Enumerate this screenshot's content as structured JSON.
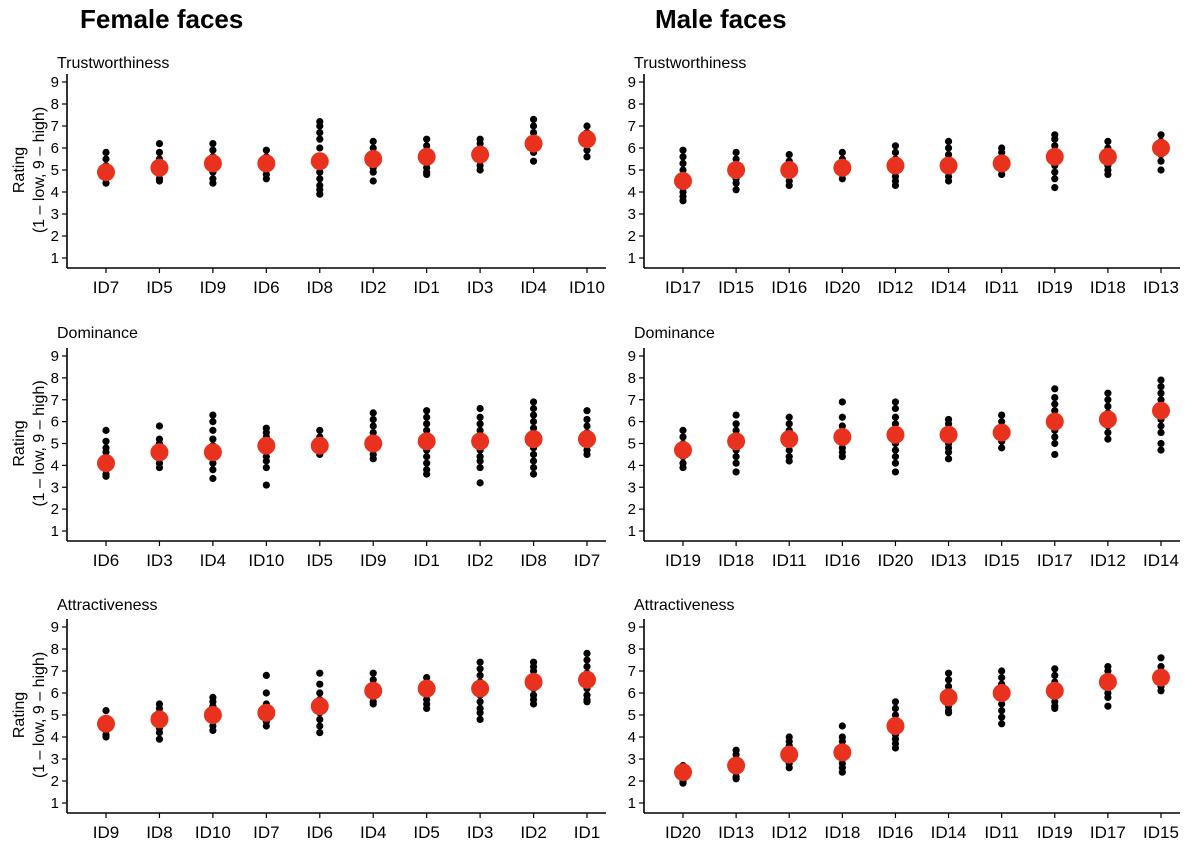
{
  "columns": {
    "female": "Female faces",
    "male": "Male faces"
  },
  "ylabel": "Rating",
  "ylabel_sub": "(1 – low, 9 – high)",
  "colors": {
    "mean": "#e8321e",
    "point": "#000000",
    "axis": "#000000"
  },
  "chart_data": [
    {
      "type": "scatter",
      "panel": "female-trustworthiness",
      "title": "Trustworthiness",
      "ylim": [
        1,
        9
      ],
      "categories": [
        "ID7",
        "ID5",
        "ID9",
        "ID6",
        "ID8",
        "ID2",
        "ID1",
        "ID3",
        "ID4",
        "ID10"
      ],
      "means": [
        4.9,
        5.1,
        5.3,
        5.3,
        5.4,
        5.5,
        5.6,
        5.7,
        6.2,
        6.4
      ],
      "points": [
        [
          5.8,
          5.5,
          5.2,
          5.0,
          4.8,
          4.6,
          4.4
        ],
        [
          6.2,
          5.8,
          5.5,
          5.2,
          5.0,
          4.8,
          4.6,
          4.5
        ],
        [
          6.2,
          5.9,
          5.6,
          5.3,
          5.1,
          4.9,
          4.6,
          4.4
        ],
        [
          5.9,
          5.6,
          5.4,
          5.2,
          5.0,
          4.8,
          4.6
        ],
        [
          7.2,
          7.0,
          6.7,
          6.4,
          6.0,
          5.6,
          5.2,
          4.9,
          4.6,
          4.3,
          4.1,
          3.9
        ],
        [
          6.3,
          6.0,
          5.6,
          5.3,
          5.1,
          4.9,
          4.5
        ],
        [
          6.4,
          6.1,
          5.9,
          5.6,
          5.3,
          5.1,
          4.9,
          4.8
        ],
        [
          6.4,
          6.2,
          5.9,
          5.6,
          5.4,
          5.2,
          5.0
        ],
        [
          7.3,
          7.0,
          6.7,
          6.4,
          6.2,
          6.0,
          5.8,
          5.4
        ],
        [
          7.0,
          6.7,
          6.5,
          6.2,
          5.9,
          5.6
        ]
      ]
    },
    {
      "type": "scatter",
      "panel": "female-dominance",
      "title": "Dominance",
      "ylim": [
        1,
        9
      ],
      "categories": [
        "ID6",
        "ID3",
        "ID4",
        "ID10",
        "ID5",
        "ID9",
        "ID1",
        "ID2",
        "ID8",
        "ID7"
      ],
      "means": [
        4.1,
        4.6,
        4.6,
        4.9,
        4.9,
        5.0,
        5.1,
        5.1,
        5.2,
        5.2
      ],
      "points": [
        [
          5.6,
          5.1,
          4.8,
          4.6,
          4.3,
          4.0,
          3.8,
          3.6,
          3.5
        ],
        [
          5.8,
          5.2,
          5.0,
          4.8,
          4.5,
          4.3,
          4.1,
          3.9
        ],
        [
          6.3,
          6.0,
          5.6,
          5.2,
          4.9,
          4.6,
          4.4,
          4.1,
          3.8,
          3.4
        ],
        [
          5.7,
          5.5,
          5.3,
          5.0,
          4.7,
          4.4,
          4.2,
          3.9,
          3.1
        ],
        [
          5.6,
          5.3,
          5.1,
          4.9,
          4.7,
          4.5
        ],
        [
          6.4,
          6.1,
          5.8,
          5.5,
          5.2,
          4.9,
          4.7,
          4.5,
          4.3
        ],
        [
          6.5,
          6.2,
          5.9,
          5.6,
          5.3,
          5.0,
          4.7,
          4.4,
          4.1,
          3.8,
          3.6
        ],
        [
          6.6,
          6.2,
          5.9,
          5.6,
          5.3,
          5.0,
          4.7,
          4.4,
          4.2,
          3.9,
          3.2
        ],
        [
          6.9,
          6.6,
          6.3,
          6.0,
          5.7,
          5.4,
          5.1,
          4.8,
          4.5,
          4.2,
          3.9,
          3.6
        ],
        [
          6.5,
          6.1,
          5.8,
          5.5,
          5.2,
          4.9,
          4.7,
          4.5
        ]
      ]
    },
    {
      "type": "scatter",
      "panel": "female-attractiveness",
      "title": "Attractiveness",
      "ylim": [
        1,
        9
      ],
      "categories": [
        "ID9",
        "ID8",
        "ID10",
        "ID7",
        "ID6",
        "ID4",
        "ID5",
        "ID3",
        "ID2",
        "ID1"
      ],
      "means": [
        4.6,
        4.8,
        5.0,
        5.1,
        5.4,
        6.1,
        6.2,
        6.2,
        6.5,
        6.6
      ],
      "points": [
        [
          5.2,
          4.8,
          4.5,
          4.3,
          4.1,
          4.0
        ],
        [
          5.5,
          5.3,
          5.1,
          4.8,
          4.6,
          4.4,
          4.2,
          3.9
        ],
        [
          5.8,
          5.6,
          5.4,
          5.2,
          4.9,
          4.7,
          4.5,
          4.3
        ],
        [
          6.8,
          6.0,
          5.5,
          5.2,
          4.9,
          4.7,
          4.5
        ],
        [
          6.9,
          6.4,
          6.0,
          5.7,
          5.4,
          5.1,
          4.8,
          4.5,
          4.2
        ],
        [
          6.9,
          6.6,
          6.4,
          6.2,
          6.0,
          5.8,
          5.6,
          5.5
        ],
        [
          6.7,
          6.5,
          6.3,
          6.1,
          5.9,
          5.7,
          5.5,
          5.3
        ],
        [
          7.4,
          7.1,
          6.8,
          6.5,
          6.2,
          5.9,
          5.6,
          5.3,
          5.1,
          4.8
        ],
        [
          7.4,
          7.2,
          7.0,
          6.7,
          6.5,
          6.2,
          5.9,
          5.7,
          5.5
        ],
        [
          7.8,
          7.5,
          7.2,
          6.9,
          6.7,
          6.4,
          6.2,
          5.9,
          5.7,
          5.6
        ]
      ]
    },
    {
      "type": "scatter",
      "panel": "male-trustworthiness",
      "title": "Trustworthiness",
      "ylim": [
        1,
        9
      ],
      "categories": [
        "ID17",
        "ID15",
        "ID16",
        "ID20",
        "ID12",
        "ID14",
        "ID11",
        "ID19",
        "ID18",
        "ID13"
      ],
      "means": [
        4.5,
        5.0,
        5.0,
        5.1,
        5.2,
        5.2,
        5.3,
        5.6,
        5.6,
        6.0
      ],
      "points": [
        [
          5.9,
          5.6,
          5.3,
          5.0,
          4.7,
          4.4,
          4.2,
          4.0,
          3.8,
          3.6
        ],
        [
          5.8,
          5.5,
          5.2,
          4.9,
          4.6,
          4.4,
          4.1
        ],
        [
          5.7,
          5.4,
          5.1,
          4.8,
          4.5,
          4.3
        ],
        [
          5.8,
          5.5,
          5.3,
          5.0,
          4.8,
          4.6
        ],
        [
          6.1,
          5.8,
          5.5,
          5.2,
          4.9,
          4.7,
          4.5,
          4.3
        ],
        [
          6.3,
          6.0,
          5.7,
          5.4,
          5.1,
          4.9,
          4.7,
          4.5
        ],
        [
          6.0,
          5.8,
          5.5,
          5.2,
          5.0,
          4.8
        ],
        [
          6.6,
          6.4,
          6.1,
          5.8,
          5.5,
          5.2,
          4.9,
          4.6,
          4.2
        ],
        [
          6.3,
          6.0,
          5.8,
          5.5,
          5.2,
          5.0,
          4.8
        ],
        [
          6.6,
          6.3,
          6.0,
          5.7,
          5.4,
          5.0
        ]
      ]
    },
    {
      "type": "scatter",
      "panel": "male-dominance",
      "title": "Dominance",
      "ylim": [
        1,
        9
      ],
      "categories": [
        "ID19",
        "ID18",
        "ID11",
        "ID16",
        "ID20",
        "ID13",
        "ID15",
        "ID17",
        "ID12",
        "ID14"
      ],
      "means": [
        4.7,
        5.1,
        5.2,
        5.3,
        5.4,
        5.4,
        5.5,
        6.0,
        6.1,
        6.5
      ],
      "points": [
        [
          5.6,
          5.3,
          5.0,
          4.7,
          4.4,
          4.1,
          3.9
        ],
        [
          6.3,
          5.9,
          5.6,
          5.3,
          5.0,
          4.7,
          4.4,
          4.1,
          3.7
        ],
        [
          6.2,
          5.9,
          5.6,
          5.3,
          5.0,
          4.7,
          4.4,
          4.2
        ],
        [
          6.9,
          6.2,
          5.8,
          5.5,
          5.2,
          5.0,
          4.8,
          4.6,
          4.4
        ],
        [
          6.9,
          6.6,
          6.2,
          5.9,
          5.6,
          5.3,
          5.0,
          4.7,
          4.4,
          4.1,
          3.7
        ],
        [
          6.1,
          5.9,
          5.6,
          5.3,
          5.0,
          4.8,
          4.6,
          4.3
        ],
        [
          6.3,
          6.0,
          5.7,
          5.4,
          5.1,
          4.8
        ],
        [
          7.5,
          7.1,
          6.8,
          6.5,
          6.2,
          5.9,
          5.6,
          5.3,
          5.0,
          4.5
        ],
        [
          7.3,
          7.0,
          6.7,
          6.4,
          6.1,
          5.8,
          5.5,
          5.2
        ],
        [
          7.9,
          7.6,
          7.3,
          7.0,
          6.7,
          6.4,
          6.1,
          5.8,
          5.5,
          5.0,
          4.7
        ]
      ]
    },
    {
      "type": "scatter",
      "panel": "male-attractiveness",
      "title": "Attractiveness",
      "ylim": [
        1,
        9
      ],
      "categories": [
        "ID20",
        "ID13",
        "ID12",
        "ID18",
        "ID16",
        "ID14",
        "ID11",
        "ID19",
        "ID17",
        "ID15"
      ],
      "means": [
        2.4,
        2.7,
        3.2,
        3.3,
        4.5,
        5.8,
        6.0,
        6.1,
        6.5,
        6.7
      ],
      "points": [
        [
          2.7,
          2.6,
          2.4,
          2.2,
          2.1,
          2.0,
          1.9
        ],
        [
          3.4,
          3.2,
          3.0,
          2.8,
          2.6,
          2.4,
          2.2,
          2.1
        ],
        [
          4.0,
          3.8,
          3.6,
          3.4,
          3.2,
          3.0,
          2.8,
          2.6
        ],
        [
          4.5,
          4.0,
          3.8,
          3.5,
          3.3,
          3.0,
          2.8,
          2.6,
          2.4
        ],
        [
          5.6,
          5.3,
          5.0,
          4.7,
          4.4,
          4.1,
          3.9,
          3.7,
          3.5
        ],
        [
          6.9,
          6.6,
          6.3,
          6.0,
          5.7,
          5.4,
          5.2,
          5.1
        ],
        [
          7.0,
          6.7,
          6.4,
          6.1,
          5.8,
          5.5,
          5.2,
          4.9,
          4.6
        ],
        [
          7.1,
          6.8,
          6.5,
          6.2,
          5.9,
          5.6,
          5.4,
          5.3
        ],
        [
          7.2,
          7.0,
          6.7,
          6.4,
          6.2,
          6.0,
          5.8,
          5.4
        ],
        [
          7.6,
          7.2,
          6.9,
          6.6,
          6.3,
          6.1
        ]
      ]
    }
  ]
}
